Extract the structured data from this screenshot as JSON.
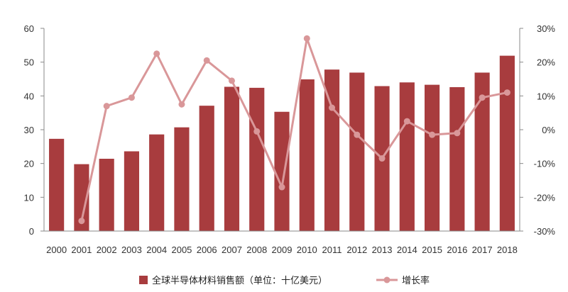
{
  "chart_data": {
    "type": "bar",
    "categories": [
      "2000",
      "2001",
      "2002",
      "2003",
      "2004",
      "2005",
      "2006",
      "2007",
      "2008",
      "2009",
      "2010",
      "2011",
      "2012",
      "2013",
      "2014",
      "2015",
      "2016",
      "2017",
      "2018"
    ],
    "series": [
      {
        "name": "全球半导体材料销售额（单位：十亿美元）",
        "type": "bar",
        "axis": "left",
        "color": "#a83c3e",
        "values": [
          27.3,
          19.8,
          21.4,
          23.6,
          28.6,
          30.7,
          37.1,
          42.7,
          42.4,
          35.3,
          44.9,
          47.8,
          46.9,
          42.9,
          44.0,
          43.3,
          42.6,
          46.9,
          51.9
        ]
      },
      {
        "name": "增长率",
        "type": "line",
        "axis": "right",
        "color": "#d99799",
        "values": [
          null,
          -27,
          7,
          9.5,
          22.5,
          7.5,
          20.5,
          14.5,
          -0.5,
          -17,
          27,
          6.5,
          -1.5,
          -8.5,
          2.5,
          -1.5,
          -1,
          9.5,
          11
        ]
      }
    ],
    "y_left": {
      "ylim": [
        0,
        60
      ],
      "ticks": [
        "0",
        "10",
        "20",
        "30",
        "40",
        "50",
        "60"
      ]
    },
    "y_right": {
      "ylim": [
        -30,
        30
      ],
      "ticks": [
        "-30%",
        "-20%",
        "-10%",
        "0%",
        "10%",
        "20%",
        "30%"
      ]
    },
    "grid": false,
    "legend_position": "bottom-center"
  }
}
